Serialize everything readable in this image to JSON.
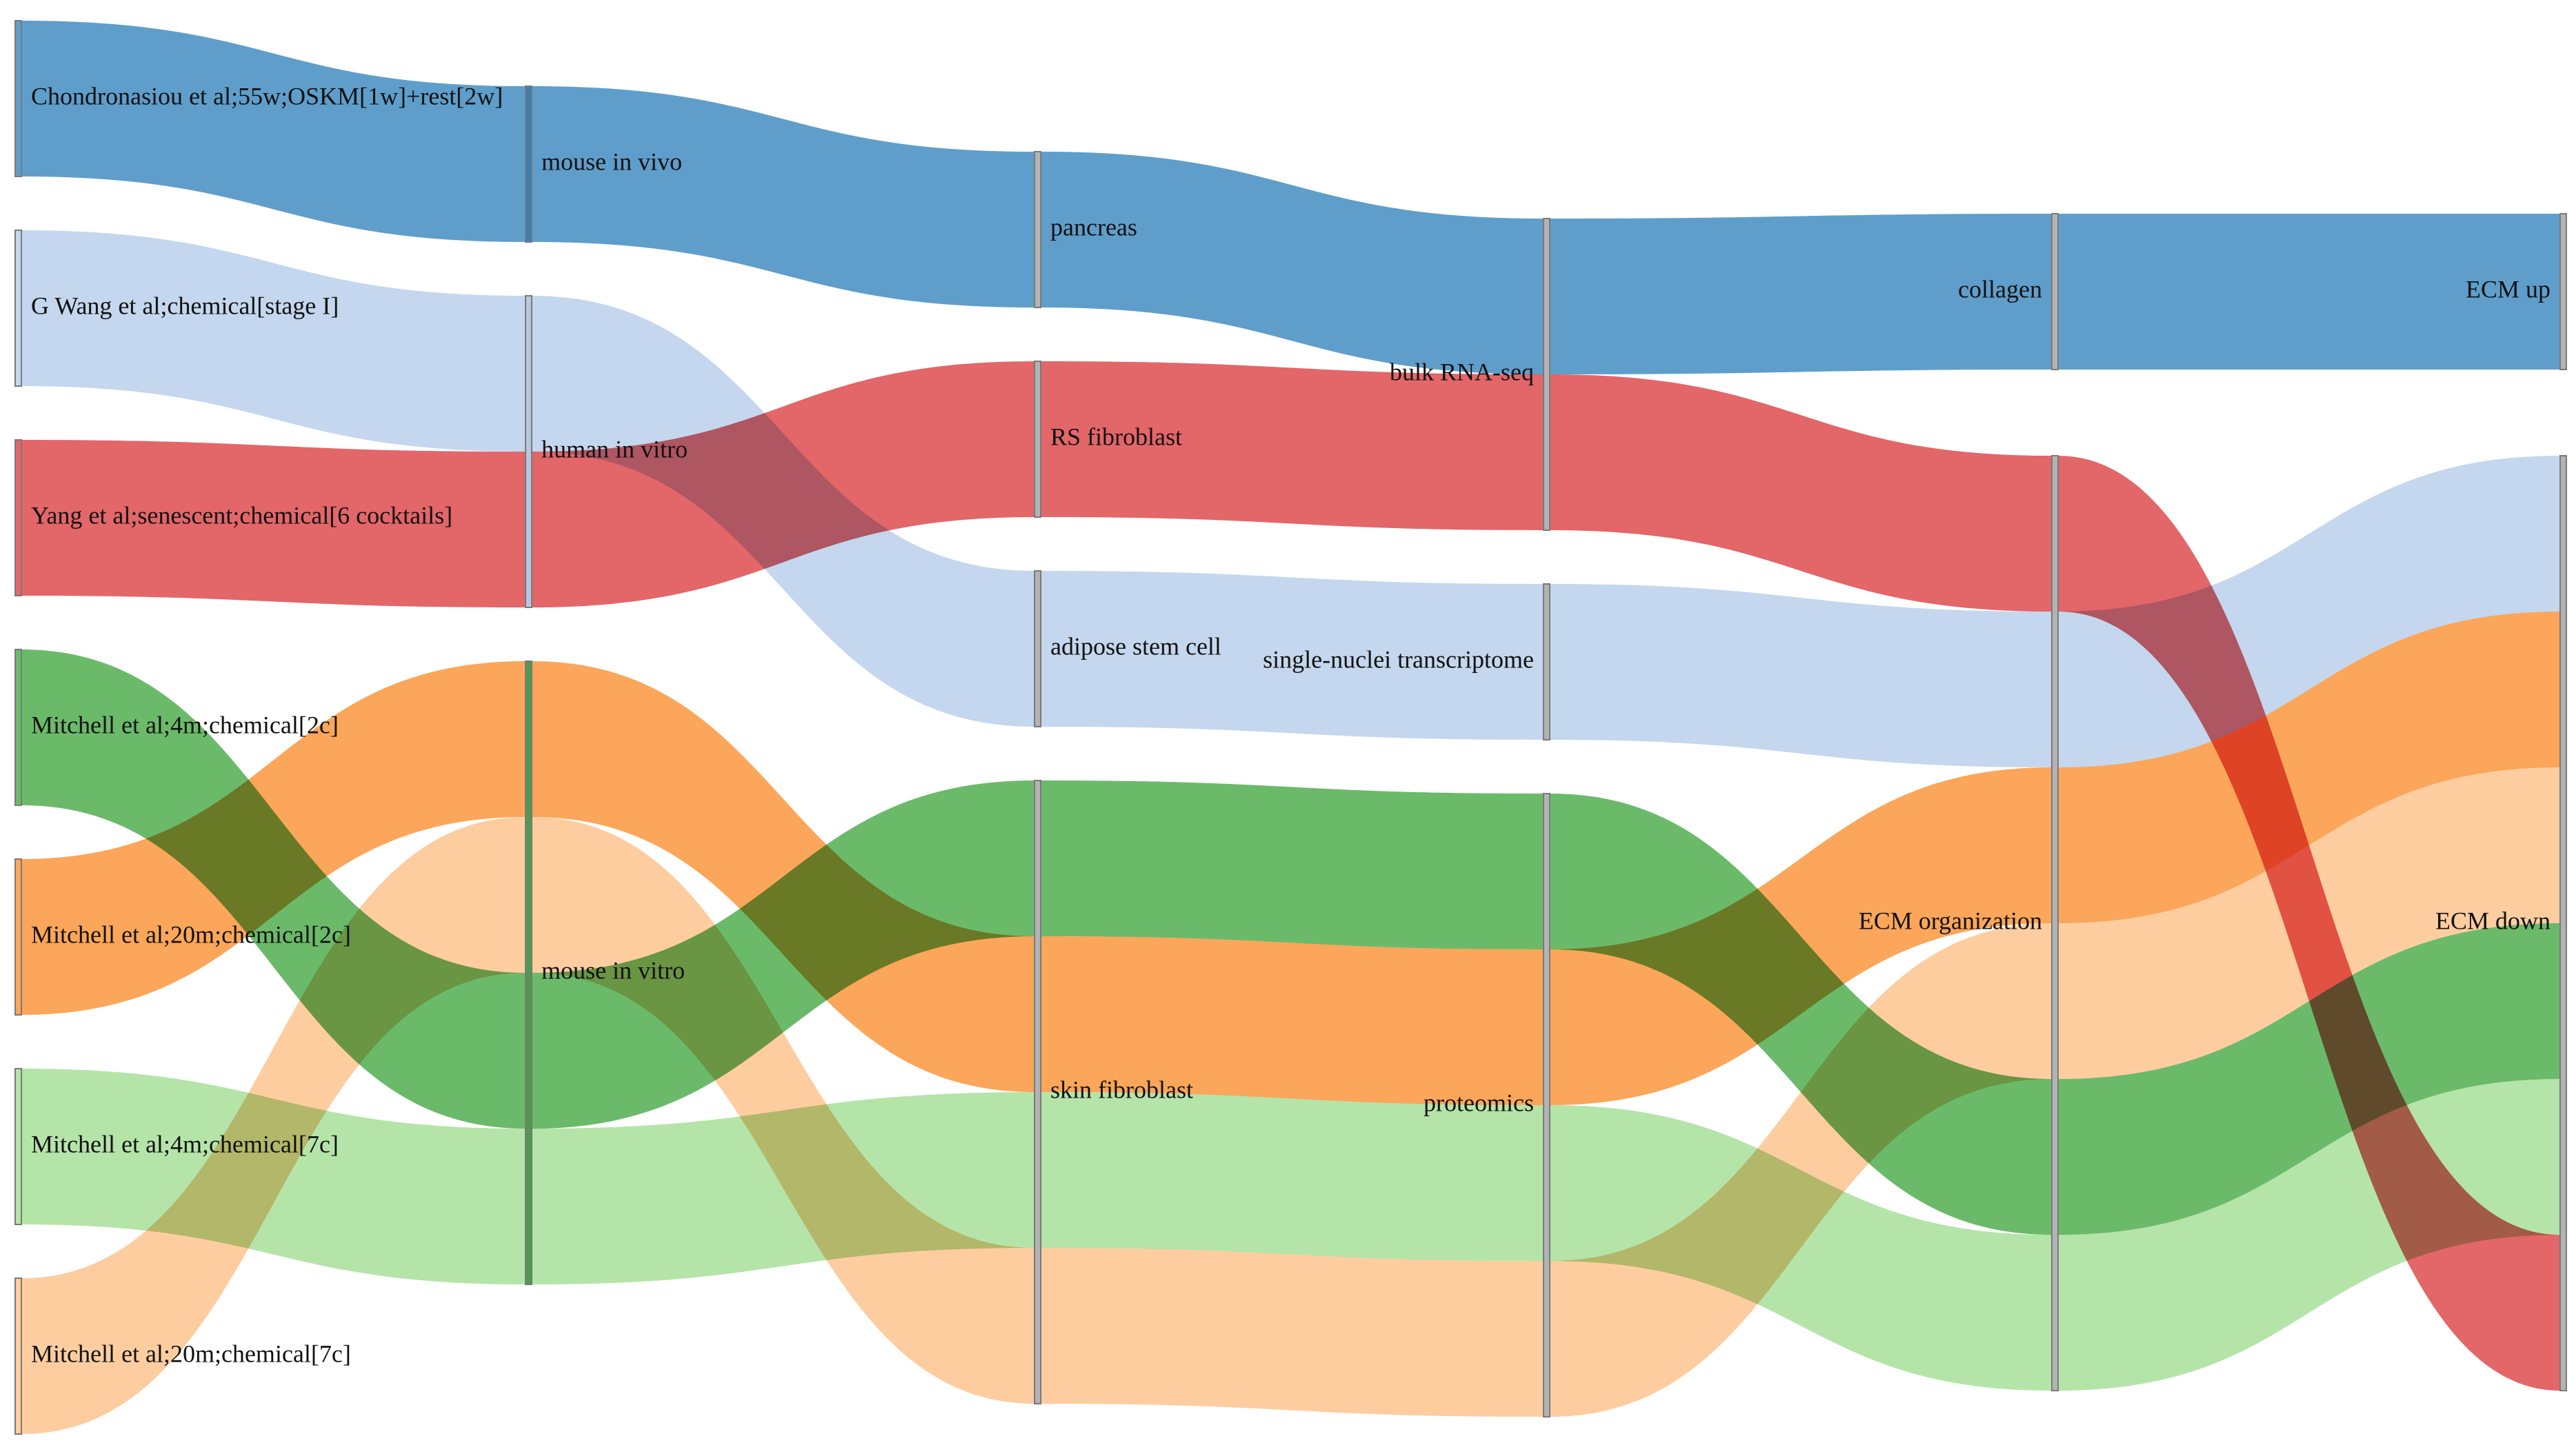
{
  "chart_data": {
    "type": "sankey",
    "title": "",
    "columns": [
      [
        "Chondronasiou et al;55w;OSKM[1w]+rest[2w]",
        "G Wang et al;chemical[stage I]",
        "Yang et al;senescent;chemical[6 cocktails]",
        "Mitchell et al;4m;chemical[2c]",
        "Mitchell et al;20m;chemical[2c]",
        "Mitchell et al;4m;chemical[7c]",
        "Mitchell et al;20m;chemical[7c]"
      ],
      [
        "mouse in vivo",
        "human in vitro",
        "mouse in vitro"
      ],
      [
        "pancreas",
        "RS fibroblast",
        "adipose stem cell",
        "skin fibroblast"
      ],
      [
        "bulk RNA-seq",
        "single-nuclei transcriptome",
        "proteomics"
      ],
      [
        "collagen",
        "ECM organization"
      ],
      [
        "ECM up",
        "ECM down"
      ]
    ],
    "sources": [
      {
        "name": "Chondronasiou et al;55w;OSKM[1w]+rest[2w]",
        "color": "#5f9ecb",
        "path": [
          "mouse in vivo",
          "pancreas",
          "bulk RNA-seq",
          "collagen",
          "ECM up"
        ]
      },
      {
        "name": "G Wang et al;chemical[stage I]",
        "color": "#c4d7ee",
        "path": [
          "human in vitro",
          "adipose stem cell",
          "single-nuclei transcriptome",
          "ECM organization",
          "ECM down"
        ]
      },
      {
        "name": "Yang et al;senescent;chemical[6 cocktails]",
        "color": "#e36669",
        "path": [
          "human in vitro",
          "RS fibroblast",
          "bulk RNA-seq",
          "ECM organization",
          "ECM down"
        ]
      },
      {
        "name": "Mitchell et al;4m;chemical[2c]",
        "color": "#6bba6a",
        "path": [
          "mouse in vitro",
          "skin fibroblast",
          "proteomics",
          "ECM organization",
          "ECM down"
        ]
      },
      {
        "name": "Mitchell et al;20m;chemical[2c]",
        "color": "#fba65a",
        "path": [
          "mouse in vitro",
          "skin fibroblast",
          "proteomics",
          "ECM organization",
          "ECM down"
        ]
      },
      {
        "name": "Mitchell et al;4m;chemical[7c]",
        "color": "#b5e4a9",
        "path": [
          "mouse in vitro",
          "skin fibroblast",
          "proteomics",
          "ECM organization",
          "ECM down"
        ]
      },
      {
        "name": "Mitchell et al;20m;chemical[7c]",
        "color": "#fdcda0",
        "path": [
          "mouse in vitro",
          "skin fibroblast",
          "proteomics",
          "ECM organization",
          "ECM down"
        ]
      }
    ],
    "flow_value_each": 1,
    "node_order": {
      "human in vitro": [
        "G Wang et al;chemical[stage I]",
        "Yang et al;senescent;chemical[6 cocktails]"
      ],
      "mouse in vitro": [
        "Mitchell et al;20m;chemical[2c]",
        "Mitchell et al;20m;chemical[7c]",
        "Mitchell et al;4m;chemical[2c]",
        "Mitchell et al;4m;chemical[7c]"
      ],
      "bulk RNA-seq": [
        "Chondronasiou et al;55w;OSKM[1w]+rest[2w]",
        "Yang et al;senescent;chemical[6 cocktails]"
      ],
      "ECM organization": [
        "Yang et al;senescent;chemical[6 cocktails]",
        "G Wang et al;chemical[stage I]",
        "Mitchell et al;20m;chemical[2c]",
        "Mitchell et al;20m;chemical[7c]",
        "Mitchell et al;4m;chemical[2c]",
        "Mitchell et al;4m;chemical[7c]"
      ],
      "ECM down": [
        "G Wang et al;chemical[stage I]",
        "Mitchell et al;20m;chemical[2c]",
        "Mitchell et al;20m;chemical[7c]",
        "Mitchell et al;4m;chemical[2c]",
        "Mitchell et al;4m;chemical[7c]",
        "Yang et al;senescent;chemical[6 cocktails]"
      ]
    },
    "label_placement": {
      "Chondronasiou et al;55w;OSKM[1w]+rest[2w]": "right",
      "G Wang et al;chemical[stage I]": "right",
      "Yang et al;senescent;chemical[6 cocktails]": "right",
      "Mitchell et al;4m;chemical[2c]": "right",
      "Mitchell et al;20m;chemical[2c]": "right",
      "Mitchell et al;4m;chemical[7c]": "right",
      "Mitchell et al;20m;chemical[7c]": "right",
      "mouse in vivo": "right",
      "human in vitro": "right",
      "mouse in vitro": "right",
      "pancreas": "right",
      "RS fibroblast": "right",
      "adipose stem cell": "right",
      "skin fibroblast": "right",
      "bulk RNA-seq": "left",
      "single-nuclei transcriptome": "left",
      "proteomics": "left",
      "collagen": "left",
      "ECM organization": "left",
      "ECM up": "left",
      "ECM down": "left"
    },
    "node_colors": {
      "mouse in vivo": "#3c7fb1",
      "human in vitro": "#b8c8dc",
      "mouse in vitro": "#4f9a4c"
    },
    "default_node_color": "#b3b3b3",
    "link_opacity": 1
  }
}
